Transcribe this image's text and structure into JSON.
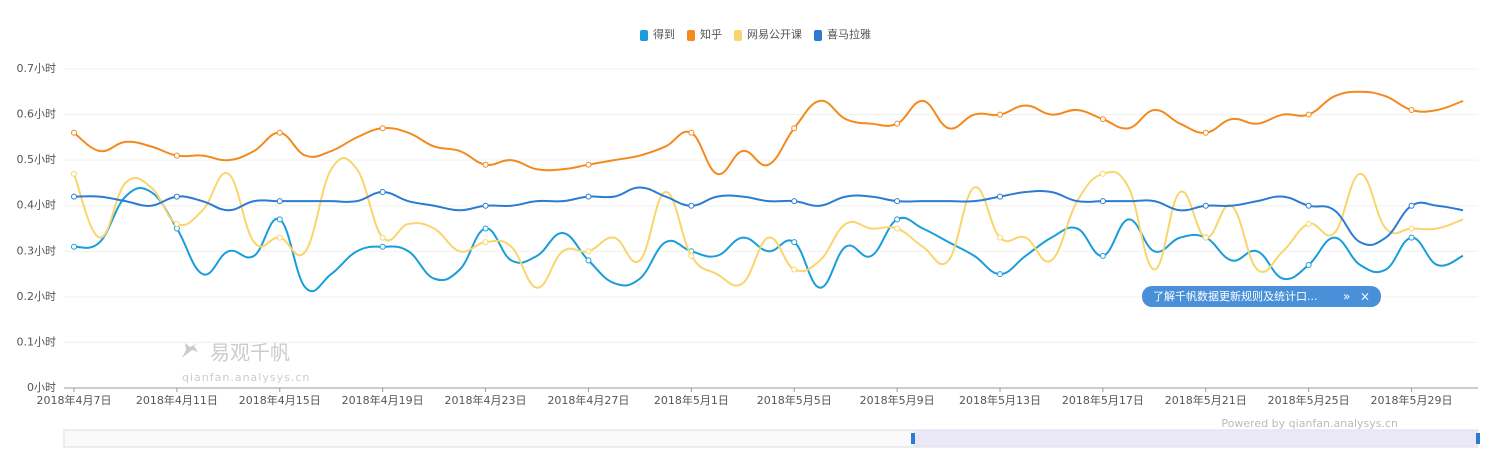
{
  "chart_data": {
    "type": "line",
    "categories": [
      "2018年4月7日",
      null,
      null,
      null,
      "2018年4月11日",
      null,
      null,
      null,
      "2018年4月15日",
      null,
      null,
      null,
      "2018年4月19日",
      null,
      null,
      null,
      "2018年4月23日",
      null,
      null,
      null,
      "2018年4月27日",
      null,
      null,
      null,
      "2018年5月1日",
      null,
      null,
      null,
      "2018年5月5日",
      null,
      null,
      null,
      "2018年5月9日",
      null,
      null,
      null,
      "2018年5月13日",
      null,
      null,
      null,
      "2018年5月17日",
      null,
      null,
      null,
      "2018年5月21日",
      null,
      null,
      null,
      "2018年5月25日",
      null,
      null,
      null,
      "2018年5月29日",
      null,
      null
    ],
    "series": [
      {
        "name": "得到",
        "color": "#1a9ddb",
        "values": [
          0.31,
          0.32,
          0.42,
          0.43,
          0.35,
          0.25,
          0.3,
          0.29,
          0.37,
          0.22,
          0.25,
          0.3,
          0.31,
          0.3,
          0.24,
          0.26,
          0.35,
          0.28,
          0.29,
          0.34,
          0.28,
          0.23,
          0.24,
          0.32,
          0.3,
          0.29,
          0.33,
          0.3,
          0.32,
          0.22,
          0.31,
          0.29,
          0.37,
          0.35,
          0.32,
          0.29,
          0.25,
          0.29,
          0.33,
          0.35,
          0.29,
          0.37,
          0.3,
          0.33,
          0.33,
          0.28,
          0.3,
          0.24,
          0.27,
          0.33,
          0.27,
          0.26,
          0.33,
          0.27,
          0.29
        ]
      },
      {
        "name": "知乎",
        "color": "#f4891e",
        "values": [
          0.56,
          0.52,
          0.54,
          0.53,
          0.51,
          0.51,
          0.5,
          0.52,
          0.56,
          0.51,
          0.52,
          0.55,
          0.57,
          0.56,
          0.53,
          0.52,
          0.49,
          0.5,
          0.48,
          0.48,
          0.49,
          0.5,
          0.51,
          0.53,
          0.56,
          0.47,
          0.52,
          0.49,
          0.57,
          0.63,
          0.59,
          0.58,
          0.58,
          0.63,
          0.57,
          0.6,
          0.6,
          0.62,
          0.6,
          0.61,
          0.59,
          0.57,
          0.61,
          0.58,
          0.56,
          0.59,
          0.58,
          0.6,
          0.6,
          0.64,
          0.65,
          0.64,
          0.61,
          0.61,
          0.63
        ]
      },
      {
        "name": "网易公开课",
        "color": "#fad56d",
        "values": [
          0.47,
          0.33,
          0.45,
          0.44,
          0.36,
          0.39,
          0.47,
          0.32,
          0.33,
          0.3,
          0.48,
          0.48,
          0.33,
          0.36,
          0.35,
          0.3,
          0.32,
          0.31,
          0.22,
          0.3,
          0.3,
          0.33,
          0.28,
          0.43,
          0.29,
          0.25,
          0.23,
          0.33,
          0.26,
          0.28,
          0.36,
          0.35,
          0.35,
          0.31,
          0.28,
          0.44,
          0.33,
          0.33,
          0.28,
          0.41,
          0.47,
          0.44,
          0.26,
          0.43,
          0.33,
          0.4,
          0.26,
          0.3,
          0.36,
          0.34,
          0.47,
          0.35,
          0.35,
          0.35,
          0.37
        ]
      },
      {
        "name": "喜马拉雅",
        "color": "#2b7bd3",
        "values": [
          0.42,
          0.42,
          0.41,
          0.4,
          0.42,
          0.41,
          0.39,
          0.41,
          0.41,
          0.41,
          0.41,
          0.41,
          0.43,
          0.41,
          0.4,
          0.39,
          0.4,
          0.4,
          0.41,
          0.41,
          0.42,
          0.42,
          0.44,
          0.42,
          0.4,
          0.42,
          0.42,
          0.41,
          0.41,
          0.4,
          0.42,
          0.42,
          0.41,
          0.41,
          0.41,
          0.41,
          0.42,
          0.43,
          0.43,
          0.41,
          0.41,
          0.41,
          0.41,
          0.39,
          0.4,
          0.4,
          0.41,
          0.42,
          0.4,
          0.39,
          0.32,
          0.33,
          0.4,
          0.4,
          0.39
        ]
      }
    ],
    "ylim": [
      0,
      0.7
    ],
    "yticks": [
      {
        "value": 0,
        "label": "0小时"
      },
      {
        "value": 0.1,
        "label": "0.1小时"
      },
      {
        "value": 0.2,
        "label": "0.2小时"
      },
      {
        "value": 0.3,
        "label": "0.3小时"
      },
      {
        "value": 0.4,
        "label": "0.4小时"
      },
      {
        "value": 0.5,
        "label": "0.5小时"
      },
      {
        "value": 0.6,
        "label": "0.6小时"
      },
      {
        "value": 0.7,
        "label": "0.7小时"
      }
    ],
    "grid": true,
    "legend": "top"
  },
  "watermark": {
    "title": "易观千帆",
    "url": "qianfan.analysys.cn"
  },
  "footer": "Powered by qianfan.analysys.cn",
  "notice": {
    "text": "了解千帆数据更新规则及统计口...",
    "more": "»",
    "close": "×"
  }
}
